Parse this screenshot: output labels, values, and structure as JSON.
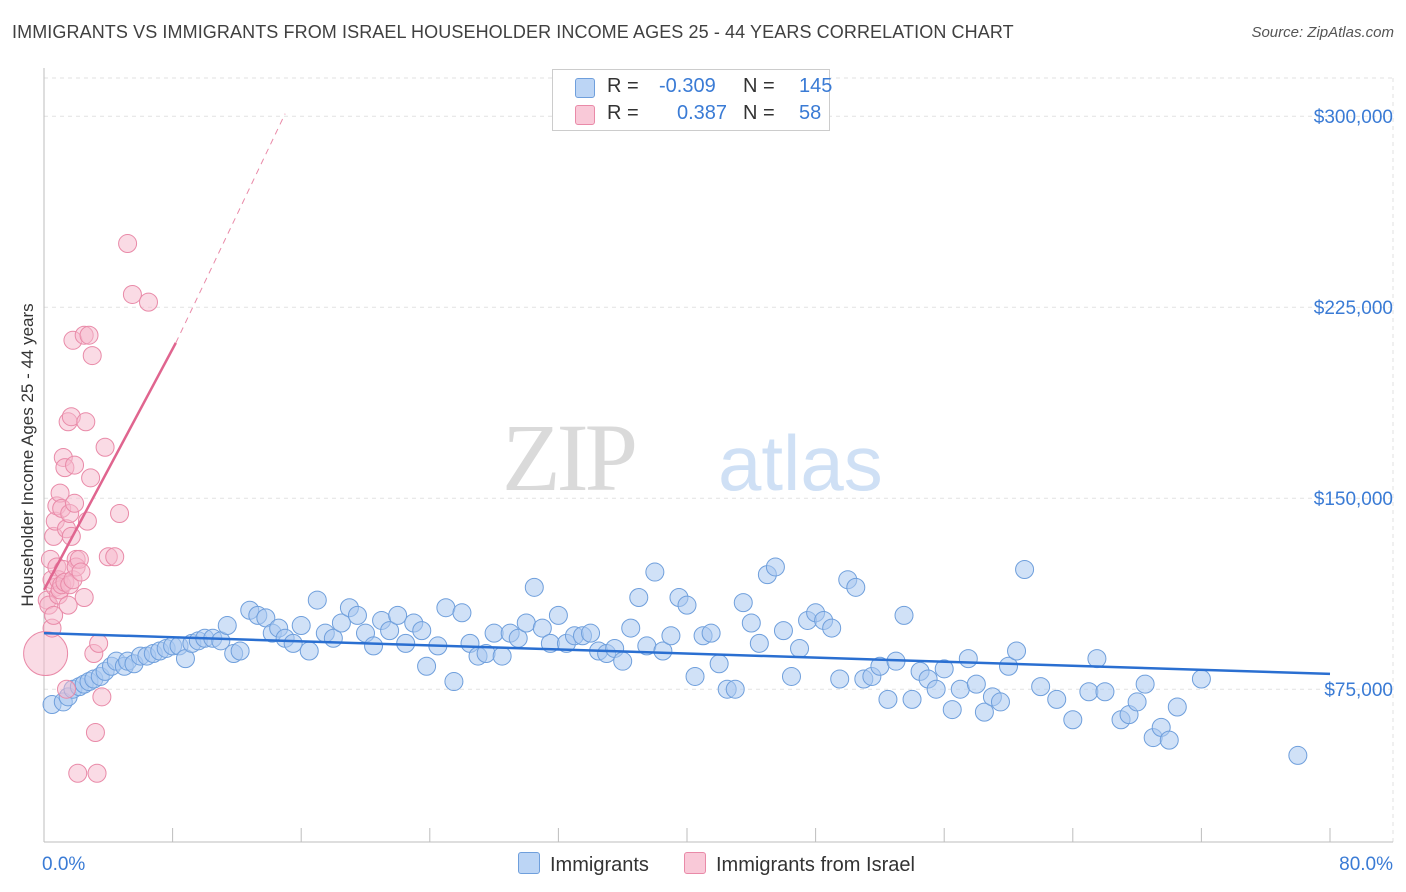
{
  "title": "IMMIGRANTS VS IMMIGRANTS FROM ISRAEL HOUSEHOLDER INCOME AGES 25 - 44 YEARS CORRELATION CHART",
  "source": "Source: ZipAtlas.com",
  "watermark": {
    "zip": "ZIP",
    "atlas": "atlas"
  },
  "legend": {
    "rows": [
      {
        "r_label": "R =",
        "r_value": "-0.309",
        "n_label": "N =",
        "n_value": "145"
      },
      {
        "r_label": "R =",
        "r_value": "0.387",
        "n_label": "N =",
        "n_value": "58"
      }
    ]
  },
  "colors": {
    "blue_fill": "#a9c8f0",
    "blue_stroke": "#6f9fdc",
    "blue_line": "#2a6fd1",
    "pink_fill": "#f6b8cb",
    "pink_stroke": "#e98aa8",
    "pink_line": "#e0658f",
    "axis_text": "#3a7bd5",
    "grid": "#e2e2e2"
  },
  "chart_data": {
    "type": "scatter",
    "title": "IMMIGRANTS VS IMMIGRANTS FROM ISRAEL HOUSEHOLDER INCOME AGES 25 - 44 YEARS CORRELATION CHART",
    "xlabel": "",
    "ylabel": "Householder Income Ages 25 - 44 years",
    "xlim": [
      0,
      80
    ],
    "ylim": [
      15000,
      315000
    ],
    "x_tick_labels": [
      "0.0%",
      "80.0%"
    ],
    "y_ticks": [
      75000,
      150000,
      225000,
      300000
    ],
    "y_tick_labels": [
      "$75,000",
      "$150,000",
      "$225,000",
      "$300,000"
    ],
    "grid": true,
    "legend_position": "top-center",
    "series": [
      {
        "name": "Immigrants",
        "R": -0.309,
        "N": 145,
        "trend": {
          "x": [
            0,
            80
          ],
          "y": [
            97000,
            81000
          ]
        },
        "points": [
          [
            0.5,
            69000
          ],
          [
            1.2,
            70000
          ],
          [
            1.5,
            72000
          ],
          [
            1.8,
            75000
          ],
          [
            2.2,
            76000
          ],
          [
            2.5,
            77000
          ],
          [
            2.8,
            78000
          ],
          [
            3.1,
            79000
          ],
          [
            3.5,
            80000
          ],
          [
            3.8,
            82000
          ],
          [
            4.2,
            84000
          ],
          [
            4.5,
            86000
          ],
          [
            5.0,
            84000
          ],
          [
            5.2,
            86000
          ],
          [
            5.6,
            85000
          ],
          [
            6.0,
            88000
          ],
          [
            6.4,
            88000
          ],
          [
            6.8,
            89000
          ],
          [
            7.2,
            90000
          ],
          [
            7.6,
            91000
          ],
          [
            8.0,
            92000
          ],
          [
            8.4,
            92000
          ],
          [
            8.8,
            87000
          ],
          [
            9.2,
            93000
          ],
          [
            9.6,
            94000
          ],
          [
            10.0,
            95000
          ],
          [
            10.5,
            95000
          ],
          [
            11.0,
            94000
          ],
          [
            11.4,
            100000
          ],
          [
            11.8,
            89000
          ],
          [
            12.2,
            90000
          ],
          [
            12.8,
            106000
          ],
          [
            13.3,
            104000
          ],
          [
            13.8,
            103000
          ],
          [
            14.2,
            97000
          ],
          [
            14.6,
            99000
          ],
          [
            15.0,
            95000
          ],
          [
            15.5,
            93000
          ],
          [
            16.0,
            100000
          ],
          [
            16.5,
            90000
          ],
          [
            17.0,
            110000
          ],
          [
            17.5,
            97000
          ],
          [
            18.0,
            95000
          ],
          [
            18.5,
            101000
          ],
          [
            19.0,
            107000
          ],
          [
            19.5,
            104000
          ],
          [
            20.0,
            97000
          ],
          [
            20.5,
            92000
          ],
          [
            21.0,
            102000
          ],
          [
            21.5,
            98000
          ],
          [
            22.0,
            104000
          ],
          [
            22.5,
            93000
          ],
          [
            23.0,
            101000
          ],
          [
            23.5,
            98000
          ],
          [
            23.8,
            84000
          ],
          [
            24.5,
            92000
          ],
          [
            25.0,
            107000
          ],
          [
            25.5,
            78000
          ],
          [
            26.0,
            105000
          ],
          [
            26.5,
            93000
          ],
          [
            27.0,
            88000
          ],
          [
            27.5,
            89000
          ],
          [
            28.0,
            97000
          ],
          [
            28.5,
            88000
          ],
          [
            29.0,
            97000
          ],
          [
            29.5,
            95000
          ],
          [
            30.0,
            101000
          ],
          [
            30.5,
            115000
          ],
          [
            31.0,
            99000
          ],
          [
            31.5,
            93000
          ],
          [
            32.0,
            104000
          ],
          [
            32.5,
            93000
          ],
          [
            33.0,
            96000
          ],
          [
            33.5,
            96000
          ],
          [
            34.0,
            97000
          ],
          [
            34.5,
            90000
          ],
          [
            35.0,
            89000
          ],
          [
            35.5,
            91000
          ],
          [
            36.0,
            86000
          ],
          [
            36.5,
            99000
          ],
          [
            37.0,
            111000
          ],
          [
            37.5,
            92000
          ],
          [
            38.0,
            121000
          ],
          [
            38.5,
            90000
          ],
          [
            39.0,
            96000
          ],
          [
            39.5,
            111000
          ],
          [
            40.0,
            108000
          ],
          [
            40.5,
            80000
          ],
          [
            41.0,
            96000
          ],
          [
            41.5,
            97000
          ],
          [
            42.0,
            85000
          ],
          [
            42.5,
            75000
          ],
          [
            43.0,
            75000
          ],
          [
            43.5,
            109000
          ],
          [
            44.0,
            101000
          ],
          [
            44.5,
            93000
          ],
          [
            45.0,
            120000
          ],
          [
            45.5,
            123000
          ],
          [
            46.0,
            98000
          ],
          [
            46.5,
            80000
          ],
          [
            47.0,
            91000
          ],
          [
            47.5,
            102000
          ],
          [
            48.0,
            105000
          ],
          [
            48.5,
            102000
          ],
          [
            49.0,
            99000
          ],
          [
            49.5,
            79000
          ],
          [
            50.0,
            118000
          ],
          [
            50.5,
            115000
          ],
          [
            51.0,
            79000
          ],
          [
            51.5,
            80000
          ],
          [
            52.0,
            84000
          ],
          [
            52.5,
            71000
          ],
          [
            53.0,
            86000
          ],
          [
            53.5,
            104000
          ],
          [
            54.0,
            71000
          ],
          [
            54.5,
            82000
          ],
          [
            55.0,
            79000
          ],
          [
            55.5,
            75000
          ],
          [
            56.0,
            83000
          ],
          [
            56.5,
            67000
          ],
          [
            57.0,
            75000
          ],
          [
            57.5,
            87000
          ],
          [
            58.0,
            77000
          ],
          [
            58.5,
            66000
          ],
          [
            59.0,
            72000
          ],
          [
            59.5,
            70000
          ],
          [
            60.0,
            84000
          ],
          [
            60.5,
            90000
          ],
          [
            61.0,
            122000
          ],
          [
            62.0,
            76000
          ],
          [
            63.0,
            71000
          ],
          [
            64.0,
            63000
          ],
          [
            65.0,
            74000
          ],
          [
            65.5,
            87000
          ],
          [
            66.0,
            74000
          ],
          [
            67.0,
            63000
          ],
          [
            67.5,
            65000
          ],
          [
            68.0,
            70000
          ],
          [
            68.5,
            77000
          ],
          [
            69.0,
            56000
          ],
          [
            69.5,
            60000
          ],
          [
            70.0,
            55000
          ],
          [
            70.5,
            68000
          ],
          [
            72.0,
            79000
          ],
          [
            78.0,
            49000
          ]
        ]
      },
      {
        "name": "Immigrants from Israel",
        "R": 0.387,
        "N": 58,
        "trend": {
          "x": [
            0,
            8.2
          ],
          "y": [
            114000,
            211000
          ],
          "extended_to": [
            15,
            301000
          ]
        },
        "points": [
          [
            0.1,
            89000
          ],
          [
            0.2,
            110000
          ],
          [
            0.3,
            108000
          ],
          [
            0.4,
            126000
          ],
          [
            0.5,
            118000
          ],
          [
            0.5,
            99000
          ],
          [
            0.6,
            104000
          ],
          [
            0.6,
            135000
          ],
          [
            0.7,
            115000
          ],
          [
            0.7,
            141000
          ],
          [
            0.8,
            147000
          ],
          [
            0.8,
            123000
          ],
          [
            0.9,
            118000
          ],
          [
            0.9,
            112000
          ],
          [
            1.0,
            152000
          ],
          [
            1.0,
            114000
          ],
          [
            1.1,
            116000
          ],
          [
            1.1,
            146000
          ],
          [
            1.2,
            166000
          ],
          [
            1.2,
            122000
          ],
          [
            1.3,
            162000
          ],
          [
            1.3,
            117000
          ],
          [
            1.4,
            138000
          ],
          [
            1.4,
            75000
          ],
          [
            1.5,
            108000
          ],
          [
            1.5,
            180000
          ],
          [
            1.6,
            116000
          ],
          [
            1.6,
            144000
          ],
          [
            1.7,
            182000
          ],
          [
            1.7,
            135000
          ],
          [
            1.8,
            212000
          ],
          [
            1.8,
            118000
          ],
          [
            1.9,
            148000
          ],
          [
            1.9,
            163000
          ],
          [
            2.0,
            126000
          ],
          [
            2.0,
            123000
          ],
          [
            2.1,
            42000
          ],
          [
            2.2,
            126000
          ],
          [
            2.3,
            121000
          ],
          [
            2.5,
            214000
          ],
          [
            2.5,
            111000
          ],
          [
            2.6,
            180000
          ],
          [
            2.7,
            141000
          ],
          [
            2.8,
            214000
          ],
          [
            2.9,
            158000
          ],
          [
            3.0,
            206000
          ],
          [
            3.1,
            89000
          ],
          [
            3.2,
            58000
          ],
          [
            3.3,
            42000
          ],
          [
            3.4,
            93000
          ],
          [
            3.6,
            72000
          ],
          [
            3.8,
            170000
          ],
          [
            4.0,
            127000
          ],
          [
            4.4,
            127000
          ],
          [
            4.7,
            144000
          ],
          [
            5.2,
            250000
          ],
          [
            5.5,
            230000
          ],
          [
            6.5,
            227000
          ]
        ]
      }
    ]
  }
}
